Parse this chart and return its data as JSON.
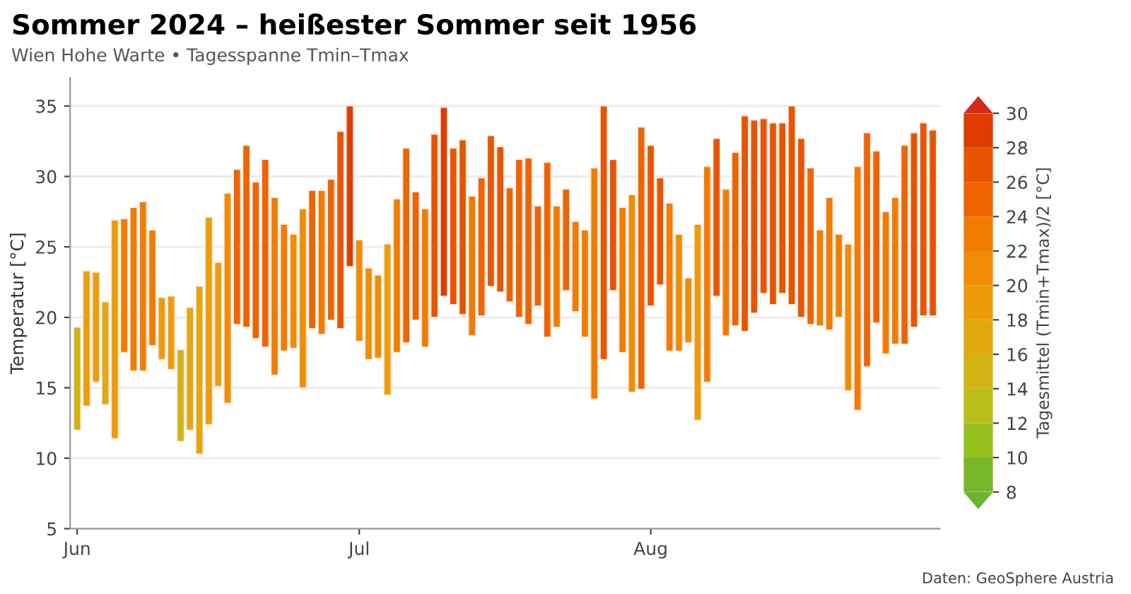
{
  "chart_data": {
    "type": "bar",
    "title": "Sommer 2024 – heißester Sommer seit 1956",
    "subtitle": "Wien Hohe Warte • Tagesspanne Tmin–Tmax",
    "ylabel": "Temperatur [°C]",
    "clabel": "Tagesmittel (Tmin+Tmax)/2 [°C]",
    "annotations": [
      "Daten: GeoSphere Austria"
    ],
    "x": [
      "2024-06-01",
      "2024-06-02",
      "2024-06-03",
      "2024-06-04",
      "2024-06-05",
      "2024-06-06",
      "2024-06-07",
      "2024-06-08",
      "2024-06-09",
      "2024-06-10",
      "2024-06-11",
      "2024-06-12",
      "2024-06-13",
      "2024-06-14",
      "2024-06-15",
      "2024-06-16",
      "2024-06-17",
      "2024-06-18",
      "2024-06-19",
      "2024-06-20",
      "2024-06-21",
      "2024-06-22",
      "2024-06-23",
      "2024-06-24",
      "2024-06-25",
      "2024-06-26",
      "2024-06-27",
      "2024-06-28",
      "2024-06-29",
      "2024-06-30",
      "2024-07-01",
      "2024-07-02",
      "2024-07-03",
      "2024-07-04",
      "2024-07-05",
      "2024-07-06",
      "2024-07-07",
      "2024-07-08",
      "2024-07-09",
      "2024-07-10",
      "2024-07-11",
      "2024-07-12",
      "2024-07-13",
      "2024-07-14",
      "2024-07-15",
      "2024-07-16",
      "2024-07-17",
      "2024-07-18",
      "2024-07-19",
      "2024-07-20",
      "2024-07-21",
      "2024-07-22",
      "2024-07-23",
      "2024-07-24",
      "2024-07-25",
      "2024-07-26",
      "2024-07-27",
      "2024-07-28",
      "2024-07-29",
      "2024-07-30",
      "2024-07-31",
      "2024-08-01",
      "2024-08-02",
      "2024-08-03",
      "2024-08-04",
      "2024-08-05",
      "2024-08-06",
      "2024-08-07",
      "2024-08-08",
      "2024-08-09",
      "2024-08-10",
      "2024-08-11",
      "2024-08-12",
      "2024-08-13",
      "2024-08-14",
      "2024-08-15",
      "2024-08-16",
      "2024-08-17",
      "2024-08-18",
      "2024-08-19",
      "2024-08-20",
      "2024-08-21",
      "2024-08-22",
      "2024-08-23",
      "2024-08-24",
      "2024-08-25",
      "2024-08-26",
      "2024-08-27",
      "2024-08-28",
      "2024-08-29",
      "2024-08-30",
      "2024-08-31"
    ],
    "base": [
      12.0,
      13.7,
      15.4,
      13.8,
      11.4,
      17.5,
      16.2,
      16.2,
      18.0,
      17.0,
      16.3,
      11.2,
      12.0,
      10.3,
      12.4,
      15.1,
      13.9,
      19.5,
      19.3,
      18.5,
      17.9,
      15.9,
      17.6,
      17.8,
      15.0,
      19.2,
      18.8,
      19.8,
      19.2,
      23.6,
      18.3,
      17.0,
      17.1,
      14.5,
      17.5,
      18.2,
      19.8,
      17.9,
      20.0,
      21.5,
      20.9,
      20.2,
      18.7,
      20.1,
      22.2,
      21.8,
      21.1,
      20.0,
      19.5,
      20.8,
      18.6,
      19.3,
      21.9,
      20.4,
      18.6,
      14.2,
      17.0,
      21.9,
      17.5,
      14.7,
      14.9,
      20.8,
      22.3,
      17.6,
      17.6,
      18.2,
      12.7,
      15.4,
      21.5,
      18.7,
      19.4,
      19.0,
      20.3,
      21.7,
      20.9,
      21.7,
      20.9,
      20.0,
      19.5,
      19.4,
      19.1,
      20.0,
      14.8,
      13.4,
      16.5,
      19.6,
      17.4,
      18.1,
      18.1,
      19.3,
      20.1,
      20.1
    ],
    "values": [
      7.3,
      9.6,
      7.8,
      7.3,
      15.5,
      9.5,
      11.6,
      12.0,
      8.2,
      4.4,
      5.2,
      6.5,
      8.7,
      11.9,
      14.7,
      8.8,
      14.9,
      11.0,
      12.9,
      11.1,
      13.3,
      12.6,
      9.0,
      8.1,
      12.7,
      9.8,
      10.2,
      10.0,
      14.0,
      11.4,
      7.2,
      6.5,
      5.9,
      10.7,
      10.9,
      13.8,
      9.1,
      9.8,
      13.0,
      13.4,
      11.1,
      12.4,
      9.9,
      9.8,
      10.7,
      10.3,
      8.1,
      11.2,
      11.8,
      7.1,
      12.4,
      8.6,
      7.2,
      6.4,
      7.6,
      16.4,
      18.0,
      9.3,
      10.3,
      14.0,
      18.6,
      11.4,
      7.6,
      10.5,
      8.3,
      4.6,
      13.9,
      15.3,
      11.2,
      10.4,
      12.3,
      15.3,
      13.7,
      12.4,
      12.9,
      12.1,
      14.1,
      12.7,
      11.1,
      6.8,
      9.4,
      5.9,
      10.4,
      17.3,
      16.6,
      12.2,
      10.1,
      10.4,
      14.1,
      13.8,
      13.7,
      13.2
    ],
    "cvalues": [
      15.65,
      18.5,
      19.3,
      17.45,
      19.15,
      22.25,
      22.0,
      22.2,
      22.1,
      19.2,
      18.9,
      14.45,
      16.35,
      16.25,
      19.75,
      19.5,
      21.35,
      25.0,
      25.75,
      24.05,
      24.55,
      22.2,
      22.1,
      21.85,
      21.35,
      24.1,
      23.9,
      24.8,
      26.2,
      29.3,
      21.9,
      20.25,
      20.05,
      19.85,
      22.95,
      25.1,
      24.35,
      22.8,
      26.5,
      28.2,
      26.45,
      26.4,
      23.65,
      25.0,
      27.55,
      26.95,
      25.15,
      25.6,
      25.4,
      24.35,
      24.8,
      23.6,
      25.5,
      23.6,
      22.4,
      22.4,
      26.0,
      26.55,
      22.65,
      21.7,
      24.2,
      26.5,
      26.1,
      22.85,
      21.75,
      20.5,
      19.65,
      23.05,
      27.1,
      23.9,
      25.55,
      26.65,
      27.15,
      27.9,
      27.35,
      27.75,
      27.95,
      26.35,
      25.05,
      22.8,
      23.8,
      22.95,
      20.0,
      22.05,
      24.8,
      25.7,
      22.45,
      23.3,
      25.15,
      26.2,
      26.95,
      26.7
    ],
    "xlim": [
      "2024-05-31T06:00",
      "2024-08-31T18:00"
    ],
    "xticks": [
      {
        "value": "2024-06-01",
        "label": "Jun"
      },
      {
        "value": "2024-07-01",
        "label": "Jul"
      },
      {
        "value": "2024-08-01",
        "label": "Aug"
      }
    ],
    "ylim": [
      5,
      37
    ],
    "yticks": [
      5,
      10,
      15,
      20,
      25,
      30,
      35
    ],
    "grid": "y",
    "clim": [
      8,
      30
    ],
    "cticks": [
      8,
      10,
      12,
      14,
      16,
      18,
      20,
      22,
      24,
      26,
      28,
      30
    ]
  }
}
